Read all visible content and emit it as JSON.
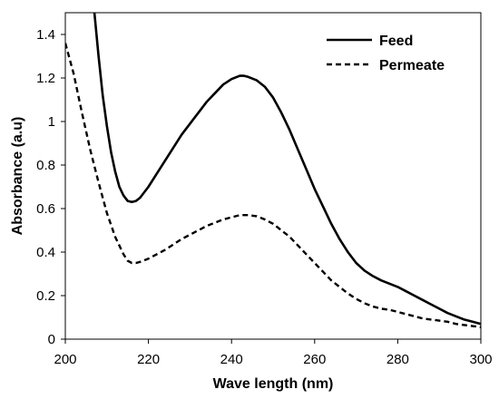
{
  "chart_data": {
    "type": "line",
    "title": "",
    "xlabel": "Wave length (nm)",
    "ylabel": "Absorbance (a.u)",
    "xlim": [
      200,
      300
    ],
    "ylim": [
      0,
      1.5
    ],
    "x_ticks": [
      200,
      220,
      240,
      260,
      280,
      300
    ],
    "y_ticks": [
      0,
      0.2,
      0.4,
      0.6,
      0.8,
      1,
      1.2,
      1.4
    ],
    "grid": false,
    "legend_position": "top-right",
    "series": [
      {
        "name": "Feed",
        "style": "solid",
        "color": "#000000",
        "x": [
          207,
          208,
          209,
          210,
          211,
          212,
          213,
          214,
          215,
          216,
          217,
          218,
          219,
          220,
          222,
          224,
          226,
          228,
          230,
          232,
          234,
          236,
          238,
          240,
          242,
          243,
          244,
          246,
          248,
          250,
          252,
          254,
          256,
          258,
          260,
          262,
          264,
          266,
          268,
          270,
          272,
          274,
          276,
          278,
          280,
          282,
          284,
          286,
          288,
          290,
          292,
          294,
          296,
          298,
          300
        ],
        "y": [
          1.5,
          1.3,
          1.12,
          0.98,
          0.86,
          0.77,
          0.7,
          0.66,
          0.635,
          0.63,
          0.635,
          0.65,
          0.675,
          0.7,
          0.76,
          0.82,
          0.88,
          0.94,
          0.99,
          1.04,
          1.09,
          1.13,
          1.17,
          1.195,
          1.21,
          1.21,
          1.205,
          1.19,
          1.16,
          1.11,
          1.04,
          0.96,
          0.87,
          0.78,
          0.69,
          0.61,
          0.53,
          0.46,
          0.4,
          0.35,
          0.315,
          0.29,
          0.27,
          0.255,
          0.24,
          0.22,
          0.2,
          0.18,
          0.16,
          0.14,
          0.12,
          0.105,
          0.09,
          0.08,
          0.07
        ]
      },
      {
        "name": "Permeate",
        "style": "dashed",
        "color": "#000000",
        "x": [
          200,
          202,
          204,
          206,
          208,
          210,
          212,
          214,
          215,
          216,
          217,
          218,
          220,
          222,
          224,
          226,
          228,
          230,
          232,
          234,
          236,
          238,
          240,
          242,
          243,
          244,
          246,
          248,
          250,
          252,
          254,
          256,
          258,
          260,
          262,
          264,
          266,
          268,
          270,
          272,
          274,
          276,
          278,
          280,
          282,
          284,
          286,
          288,
          290,
          292,
          294,
          296,
          298,
          300
        ],
        "y": [
          1.36,
          1.22,
          1.04,
          0.87,
          0.72,
          0.58,
          0.47,
          0.39,
          0.36,
          0.35,
          0.35,
          0.355,
          0.37,
          0.39,
          0.41,
          0.435,
          0.46,
          0.48,
          0.5,
          0.52,
          0.535,
          0.55,
          0.56,
          0.57,
          0.57,
          0.57,
          0.565,
          0.55,
          0.53,
          0.5,
          0.47,
          0.43,
          0.39,
          0.35,
          0.31,
          0.27,
          0.24,
          0.21,
          0.185,
          0.165,
          0.15,
          0.14,
          0.135,
          0.125,
          0.115,
          0.105,
          0.095,
          0.09,
          0.085,
          0.08,
          0.07,
          0.065,
          0.06,
          0.055
        ]
      }
    ]
  }
}
